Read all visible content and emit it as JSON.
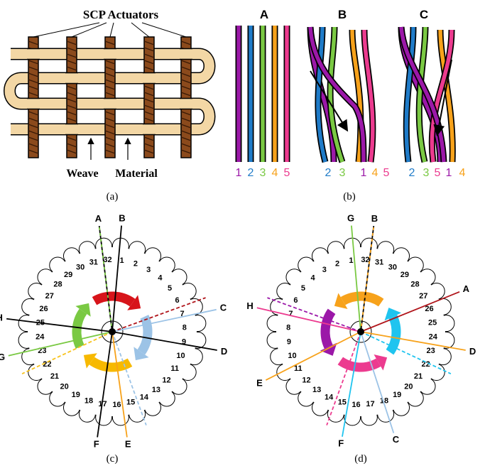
{
  "panel_a": {
    "title": "SCP Actuators",
    "label_weave": "Weave",
    "label_material": "Material",
    "caption": "(a)"
  },
  "panel_b": {
    "caption": "(b)",
    "group_titles": [
      "A",
      "B",
      "C"
    ],
    "group_a_numbers": [
      "1",
      "2",
      "3",
      "4",
      "5"
    ],
    "group_b_numbers": [
      "2",
      "3",
      "1",
      "4",
      "5"
    ],
    "group_c_numbers": [
      "2",
      "3",
      "5",
      "1",
      "4"
    ],
    "colors": {
      "purple": "#9b18a8",
      "blue": "#1f7bc8",
      "green": "#7ac943",
      "orange": "#f7a21b",
      "pink": "#ec3b8f"
    }
  },
  "panel_c": {
    "caption": "(c)",
    "line_labels": [
      "A",
      "B",
      "C",
      "D",
      "E",
      "F",
      "G",
      "H"
    ],
    "slot_numbers": [
      "1",
      "2",
      "3",
      "4",
      "5",
      "6",
      "7",
      "8",
      "9",
      "10",
      "11",
      "12",
      "13",
      "14",
      "15",
      "16",
      "17",
      "18",
      "19",
      "20",
      "21",
      "22",
      "23",
      "24",
      "25",
      "26",
      "27",
      "28",
      "29",
      "30",
      "31",
      "32"
    ]
  },
  "panel_d": {
    "caption": "(d)",
    "line_labels": [
      "A",
      "B",
      "C",
      "D",
      "E",
      "F",
      "G",
      "H"
    ],
    "slot_numbers": [
      "1",
      "2",
      "3",
      "4",
      "5",
      "6",
      "7",
      "8",
      "9",
      "10",
      "11",
      "12",
      "13",
      "14",
      "15",
      "16",
      "17",
      "18",
      "19",
      "20",
      "21",
      "22",
      "23",
      "24",
      "25",
      "26",
      "27",
      "28",
      "29",
      "30",
      "31",
      "32"
    ]
  }
}
